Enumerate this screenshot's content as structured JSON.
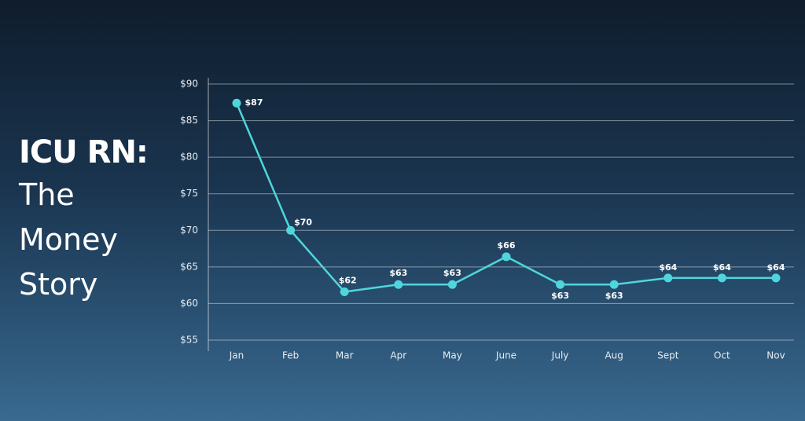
{
  "chart_data": {
    "type": "line",
    "title": "ICU RN:",
    "subtitle": "The Money Story",
    "categories": [
      "Jan",
      "Feb",
      "Mar",
      "Apr",
      "May",
      "June",
      "July",
      "Aug",
      "Sept",
      "Oct",
      "Nov"
    ],
    "series": [
      {
        "name": "ICU RN",
        "color": "#4fd6dc",
        "values": [
          87.4,
          70,
          61.6,
          62.6,
          62.6,
          66.4,
          62.6,
          62.6,
          63.5,
          63.5,
          63.5
        ],
        "value_labels": [
          "$87",
          "$70",
          "$62",
          "$63",
          "$63",
          "$66",
          "$63",
          "$63",
          "$64",
          "$64",
          "$64"
        ]
      }
    ],
    "ylim": [
      55,
      90
    ],
    "yticks": [
      {
        "value": 55,
        "label": "$55"
      },
      {
        "value": 60,
        "label": "$60"
      },
      {
        "value": 65,
        "label": "$65"
      },
      {
        "value": 70,
        "label": "$70"
      },
      {
        "value": 75,
        "label": "$75"
      },
      {
        "value": 80,
        "label": "$80"
      },
      {
        "value": 85,
        "label": "$85"
      },
      {
        "value": 90,
        "label": "$90"
      }
    ],
    "grid": true
  }
}
